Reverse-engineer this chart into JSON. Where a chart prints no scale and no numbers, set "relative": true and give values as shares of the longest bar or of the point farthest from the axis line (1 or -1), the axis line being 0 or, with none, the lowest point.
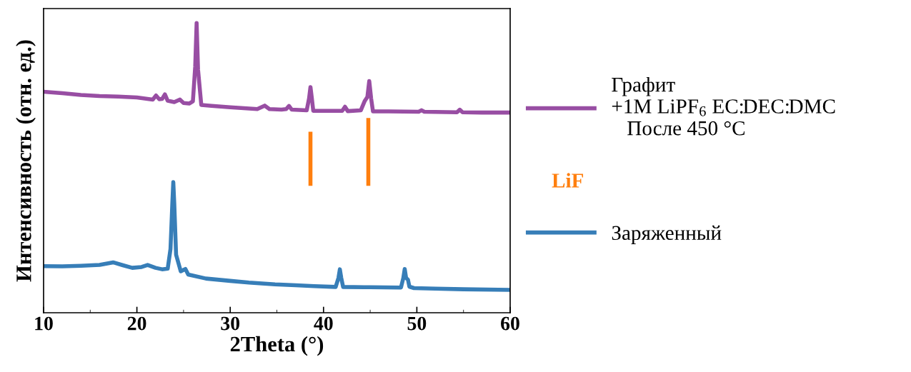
{
  "chart_data": {
    "type": "line",
    "xlabel": "2Theta (°)",
    "ylabel": "Интенсивность (отн. ед.)",
    "relative": true,
    "xlim": [
      10,
      60
    ],
    "xticks": [
      10,
      20,
      30,
      40,
      50,
      60
    ],
    "tick_labels": "x",
    "grid": false,
    "legend": "right",
    "marker": "none",
    "line_style": "solid",
    "series": [
      {
        "name": "Графит\n+1M LiPF$_{6}$ EC:DEC:DMC\n   После 450 °C",
        "color": "#984ea3",
        "x": [
          10,
          12,
          14,
          16,
          18,
          20,
          21.7,
          22.05,
          22.4,
          22.7,
          23.0,
          23.3,
          24.0,
          24.6,
          25.0,
          25.6,
          26.0,
          26.25,
          26.4,
          26.55,
          26.9,
          28,
          30,
          32.9,
          33.7,
          34.2,
          35.5,
          36.0,
          36.3,
          36.6,
          38.2,
          38.45,
          38.6,
          38.75,
          38.9,
          40,
          42.0,
          42.3,
          42.6,
          44.0,
          44.4,
          44.7,
          44.9,
          45.1,
          45.3,
          47,
          50.2,
          50.5,
          50.8,
          54.3,
          54.6,
          54.9,
          57,
          60
        ],
        "values": [
          0.763,
          0.758,
          0.752,
          0.748,
          0.746,
          0.743,
          0.736,
          0.75,
          0.737,
          0.738,
          0.754,
          0.732,
          0.727,
          0.736,
          0.724,
          0.722,
          0.73,
          0.85,
          1.0,
          0.84,
          0.717,
          0.714,
          0.709,
          0.703,
          0.715,
          0.703,
          0.701,
          0.703,
          0.714,
          0.701,
          0.699,
          0.74,
          0.779,
          0.74,
          0.697,
          0.697,
          0.697,
          0.711,
          0.696,
          0.699,
          0.73,
          0.745,
          0.8,
          0.74,
          0.695,
          0.695,
          0.694,
          0.699,
          0.694,
          0.692,
          0.701,
          0.692,
          0.691,
          0.691
        ]
      },
      {
        "name": "LiF",
        "type": "line",
        "color": "#ff7f0e",
        "x": [
          38.6,
          38.6,
          41.7,
          44.8,
          44.8
        ],
        "values": [
          0.438,
          0.625,
          null,
          0.438,
          0.672
        ]
      },
      {
        "name": "Заряженный",
        "color": "#377eb8",
        "x": [
          10,
          12,
          14,
          16,
          17.45,
          18.5,
          19.5,
          20.5,
          21.15,
          22,
          22.7,
          23.3,
          23.6,
          23.8,
          23.9,
          24.0,
          24.2,
          24.7,
          25.2,
          25.5,
          27.4,
          30,
          32,
          34.8,
          37,
          39,
          41.3,
          41.6,
          41.75,
          41.9,
          42.1,
          45,
          48.3,
          48.55,
          48.7,
          48.85,
          49.05,
          49.2,
          49.7,
          52,
          55,
          60
        ],
        "values": [
          0.161,
          0.16,
          0.162,
          0.165,
          0.174,
          0.164,
          0.155,
          0.158,
          0.165,
          0.155,
          0.15,
          0.152,
          0.22,
          0.38,
          0.451,
          0.38,
          0.2,
          0.143,
          0.151,
          0.132,
          0.118,
          0.11,
          0.104,
          0.098,
          0.095,
          0.092,
          0.089,
          0.12,
          0.15,
          0.12,
          0.089,
          0.088,
          0.087,
          0.12,
          0.151,
          0.12,
          0.114,
          0.09,
          0.085,
          0.083,
          0.081,
          0.079
        ]
      }
    ]
  }
}
